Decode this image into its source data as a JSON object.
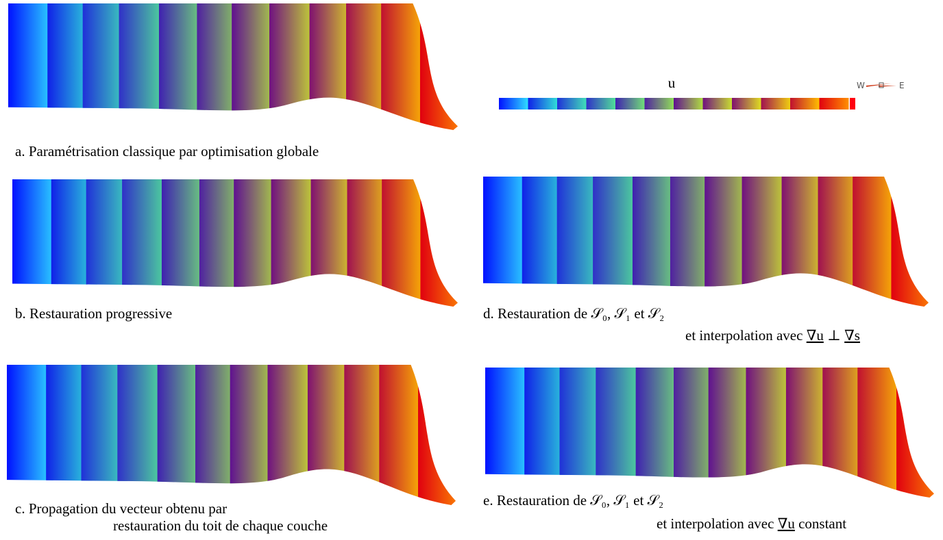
{
  "colorbar": {
    "label": "u",
    "compass": {
      "west": "W",
      "east": "E"
    }
  },
  "panels": [
    {
      "caption": [
        [
          "a. Paramétrisation classique par optimisation globale"
        ]
      ]
    },
    {
      "caption": [
        [
          "b. Restauration progressive"
        ]
      ]
    },
    {
      "caption": [
        [
          "c. Propagation du vecteur obtenu par"
        ],
        [
          "restauration du toit de chaque couche"
        ]
      ]
    },
    {
      "caption": [
        [
          "d. Restauration de 𝒮₀, 𝒮₁ et 𝒮₂"
        ],
        [
          "et interpolation avec ",
          {
            "text": "∇u",
            "underline": true
          },
          " ⊥ ",
          {
            "text": "∇s",
            "underline": true
          }
        ]
      ]
    },
    {
      "caption": [
        [
          "e. Restauration de 𝒮₀, 𝒮₁ et 𝒮₂"
        ],
        [
          "et interpolation avec ",
          {
            "text": "∇u",
            "underline": true
          },
          " constant"
        ]
      ]
    }
  ]
}
